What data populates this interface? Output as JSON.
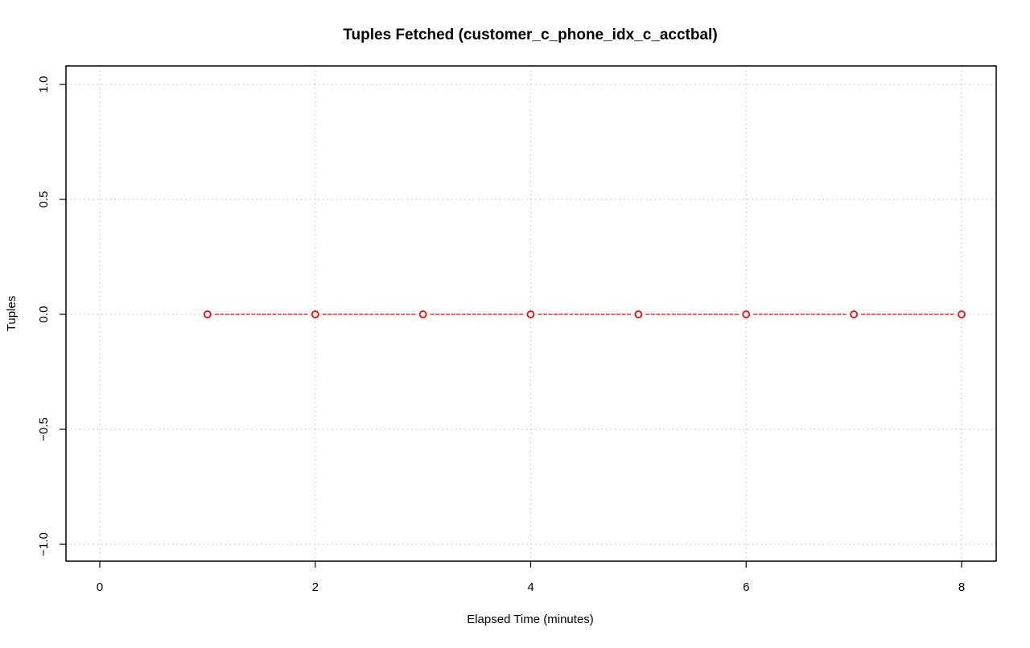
{
  "chart_data": {
    "type": "line",
    "title": "Tuples Fetched (customer_c_phone_idx_c_acctbal)",
    "xlabel": "Elapsed Time (minutes)",
    "ylabel": "Tuples",
    "xlim": [
      0,
      8
    ],
    "ylim": [
      -1.0,
      1.0
    ],
    "x_ticks": [
      0,
      2,
      4,
      6,
      8
    ],
    "x_tick_labels": [
      "0",
      "2",
      "4",
      "6",
      "8"
    ],
    "y_ticks": [
      -1.0,
      -0.5,
      0.0,
      0.5,
      1.0
    ],
    "y_tick_labels": [
      "−1.0",
      "−0.5",
      "0.0",
      "0.5",
      "1.0"
    ],
    "grid": true,
    "series": [
      {
        "color": "#ff0000",
        "x": [
          1,
          2,
          3,
          4,
          5,
          6,
          7,
          8
        ],
        "y": [
          0,
          0,
          0,
          0,
          0,
          0,
          0,
          0
        ]
      }
    ]
  }
}
